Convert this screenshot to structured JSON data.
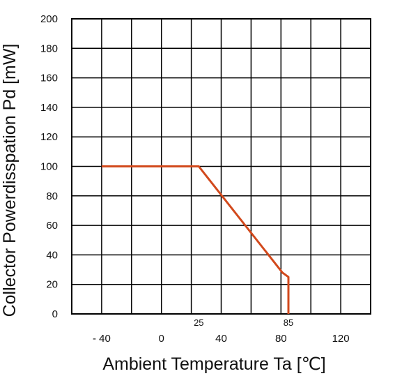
{
  "chart_data": {
    "type": "line",
    "xlabel": "Ambient Temperature Ta [℃]",
    "ylabel": "Collector Powerdisspation Pd [mW]",
    "xlim": [
      -60,
      140
    ],
    "ylim": [
      0,
      200
    ],
    "x_ticks": [
      {
        "value": -40,
        "label": "- 40"
      },
      {
        "value": 0,
        "label": "0"
      },
      {
        "value": 40,
        "label": "40"
      },
      {
        "value": 80,
        "label": "80"
      },
      {
        "value": 120,
        "label": "120"
      }
    ],
    "x_annotations": [
      {
        "value": 25,
        "label": "25"
      },
      {
        "value": 85,
        "label": "85"
      }
    ],
    "y_ticks": [
      {
        "value": 0,
        "label": "0"
      },
      {
        "value": 20,
        "label": "20"
      },
      {
        "value": 40,
        "label": "40"
      },
      {
        "value": 60,
        "label": "60"
      },
      {
        "value": 80,
        "label": "80"
      },
      {
        "value": 100,
        "label": "100"
      },
      {
        "value": 120,
        "label": "120"
      },
      {
        "value": 140,
        "label": "140"
      },
      {
        "value": 160,
        "label": "160"
      },
      {
        "value": 180,
        "label": "180"
      },
      {
        "value": 200,
        "label": "200"
      }
    ],
    "grid": true,
    "legend": "none",
    "series": [
      {
        "color": "#d2491c",
        "points": [
          {
            "x": -40,
            "y": 100
          },
          {
            "x": 25,
            "y": 100
          },
          {
            "x": 81,
            "y": 28
          },
          {
            "x": 85,
            "y": 25
          },
          {
            "x": 85,
            "y": 0
          }
        ]
      }
    ]
  }
}
